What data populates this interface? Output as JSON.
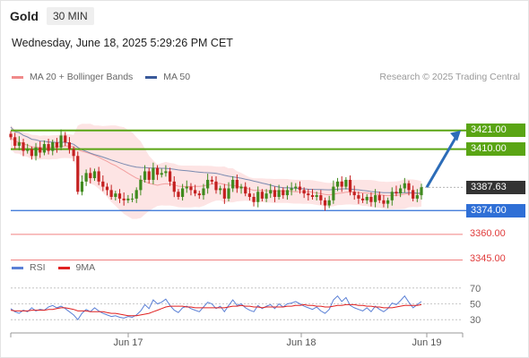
{
  "header": {
    "symbol": "Gold",
    "timeframe": "30 MIN"
  },
  "timestamp": "Wednesday, June 18, 2025 5:29:26 PM CET",
  "legend": {
    "items": [
      {
        "label": "MA 20 + Bollinger Bands",
        "color": "#f08a8a"
      },
      {
        "label": "MA 50",
        "color": "#3a5a9a"
      }
    ],
    "credit": "Research © 2025 Trading Central"
  },
  "rsi_legend": {
    "items": [
      {
        "label": "RSI",
        "color": "#5b80d6"
      },
      {
        "label": "9MA",
        "color": "#e02020"
      }
    ]
  },
  "colors": {
    "resistance": "#5aa514",
    "pivot": "#2f6fd6",
    "support": "#f08080",
    "bollinger_fill": "#fde4e4",
    "candle_up": "#3f8a1e",
    "candle_down": "#c42020",
    "arrow": "#2c6cb8",
    "current_tag": "#333333"
  },
  "levels": [
    {
      "value": 3421.0,
      "label": "3421.00",
      "kind": "resistance"
    },
    {
      "value": 3410.0,
      "label": "3410.00",
      "kind": "resistance"
    },
    {
      "value": 3387.63,
      "label": "3387.63",
      "kind": "current"
    },
    {
      "value": 3374.0,
      "label": "3374.00",
      "kind": "pivot"
    },
    {
      "value": 3360.0,
      "label": "3360.00",
      "kind": "support"
    },
    {
      "value": 3345.0,
      "label": "3345.00",
      "kind": "support"
    }
  ],
  "chart_data": {
    "type": "candlestick",
    "ylim": [
      3340,
      3445
    ],
    "x_ticks": [
      "Jun 17",
      "Jun 18",
      "Jun 19"
    ],
    "closes": [
      3417,
      3412,
      3414,
      3409,
      3410,
      3406,
      3411,
      3408,
      3413,
      3409,
      3414,
      3411,
      3418,
      3414,
      3410,
      3406,
      3385,
      3391,
      3396,
      3393,
      3397,
      3391,
      3388,
      3386,
      3382,
      3384,
      3381,
      3380,
      3381,
      3381,
      3386,
      3392,
      3397,
      3392,
      3399,
      3395,
      3396,
      3397,
      3391,
      3385,
      3382,
      3387,
      3388,
      3386,
      3384,
      3383,
      3387,
      3392,
      3391,
      3386,
      3387,
      3381,
      3387,
      3392,
      3387,
      3388,
      3384,
      3382,
      3379,
      3385,
      3381,
      3384,
      3386,
      3382,
      3386,
      3383,
      3386,
      3387,
      3388,
      3386,
      3384,
      3383,
      3382,
      3383,
      3380,
      3377,
      3380,
      3388,
      3391,
      3388,
      3392,
      3385,
      3383,
      3381,
      3380,
      3382,
      3379,
      3383,
      3380,
      3378,
      3380,
      3385,
      3384,
      3387,
      3390,
      3386,
      3381,
      3383,
      3387.63
    ],
    "rsi": {
      "ylim": [
        20,
        80
      ],
      "ticks": [
        70,
        50,
        30
      ],
      "values": [
        44,
        40,
        38,
        42,
        40,
        45,
        41,
        43,
        42,
        46,
        48,
        45,
        47,
        44,
        40,
        36,
        30,
        38,
        43,
        40,
        45,
        41,
        38,
        36,
        34,
        35,
        33,
        32,
        34,
        33,
        36,
        41,
        49,
        44,
        55,
        50,
        52,
        56,
        48,
        42,
        39,
        45,
        47,
        44,
        42,
        40,
        46,
        52,
        50,
        44,
        47,
        40,
        48,
        55,
        48,
        50,
        45,
        42,
        40,
        48,
        44,
        47,
        49,
        44,
        50,
        46,
        50,
        51,
        53,
        50,
        47,
        45,
        43,
        46,
        41,
        38,
        43,
        55,
        60,
        53,
        58,
        48,
        45,
        43,
        41,
        45,
        40,
        47,
        43,
        40,
        44,
        51,
        49,
        54,
        60,
        52,
        45,
        49,
        53
      ],
      "ma9": [
        42,
        41,
        41,
        41,
        41,
        42,
        42,
        42,
        42,
        43,
        43,
        44,
        45,
        45,
        44,
        43,
        41,
        41,
        41,
        40,
        40,
        40,
        40,
        39,
        38,
        38,
        37,
        36,
        35,
        35,
        35,
        36,
        37,
        38,
        40,
        42,
        44,
        46,
        47,
        47,
        47,
        47,
        46,
        46,
        45,
        45,
        45,
        45,
        45,
        45,
        45,
        45,
        46,
        47,
        47,
        48,
        47,
        47,
        46,
        46,
        45,
        46,
        46,
        46,
        46,
        46,
        47,
        47,
        48,
        48,
        49,
        48,
        48,
        47,
        47,
        46,
        46,
        47,
        48,
        48,
        49,
        49,
        49,
        48,
        48,
        47,
        47,
        46,
        46,
        45,
        45,
        45,
        46,
        47,
        48,
        48,
        48,
        48,
        49
      ]
    }
  }
}
